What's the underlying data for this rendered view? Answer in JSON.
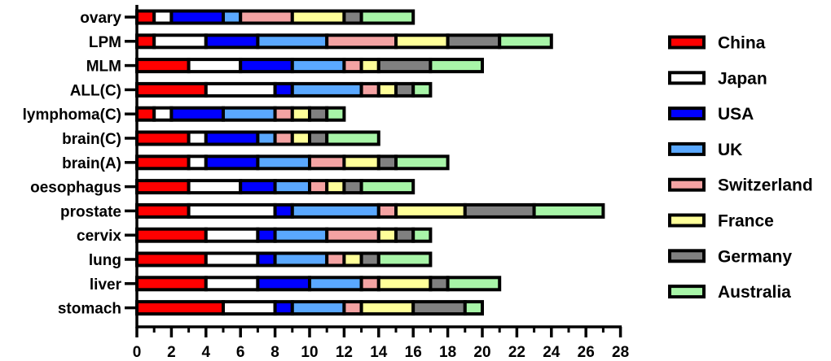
{
  "chart_data": {
    "type": "bar",
    "orientation": "horizontal",
    "stacked": true,
    "title": "",
    "xlabel": "",
    "ylabel": "",
    "xlim": [
      0,
      28
    ],
    "x_ticks": [
      0,
      2,
      4,
      6,
      8,
      10,
      12,
      14,
      16,
      18,
      20,
      22,
      24,
      26,
      28
    ],
    "grid": false,
    "legend_position": "right",
    "categories": [
      "ovary",
      "LPM",
      "MLM",
      "ALL(C)",
      "lymphoma(C)",
      "brain(C)",
      "brain(A)",
      "oesophagus",
      "prostate",
      "cervix",
      "lung",
      "liver",
      "stomach"
    ],
    "series": [
      {
        "name": "China",
        "color": "#ff0000",
        "values": [
          1,
          1,
          3,
          4,
          1,
          3,
          3,
          3,
          3,
          4,
          4,
          4,
          5
        ]
      },
      {
        "name": "Japan",
        "color": "#ffffff",
        "values": [
          1,
          3,
          3,
          4,
          1,
          1,
          1,
          3,
          5,
          3,
          3,
          3,
          3
        ]
      },
      {
        "name": "USA",
        "color": "#0000ff",
        "values": [
          3,
          3,
          3,
          1,
          3,
          3,
          3,
          2,
          1,
          1,
          1,
          3,
          1
        ]
      },
      {
        "name": "UK",
        "color": "#5aa8ff",
        "values": [
          1,
          4,
          3,
          4,
          3,
          1,
          3,
          2,
          5,
          3,
          3,
          3,
          3
        ]
      },
      {
        "name": "Switzerland",
        "color": "#f4a3a3",
        "values": [
          3,
          4,
          1,
          1,
          1,
          1,
          2,
          1,
          1,
          3,
          1,
          1,
          1
        ]
      },
      {
        "name": "France",
        "color": "#ffff99",
        "values": [
          3,
          3,
          1,
          1,
          1,
          1,
          2,
          1,
          4,
          1,
          1,
          3,
          3
        ]
      },
      {
        "name": "Germany",
        "color": "#808080",
        "values": [
          1,
          3,
          3,
          1,
          1,
          1,
          1,
          1,
          4,
          1,
          1,
          1,
          3
        ]
      },
      {
        "name": "Australia",
        "color": "#a8f5a8",
        "values": [
          3,
          3,
          3,
          1,
          1,
          3,
          3,
          3,
          4,
          1,
          3,
          3,
          1
        ]
      }
    ]
  }
}
